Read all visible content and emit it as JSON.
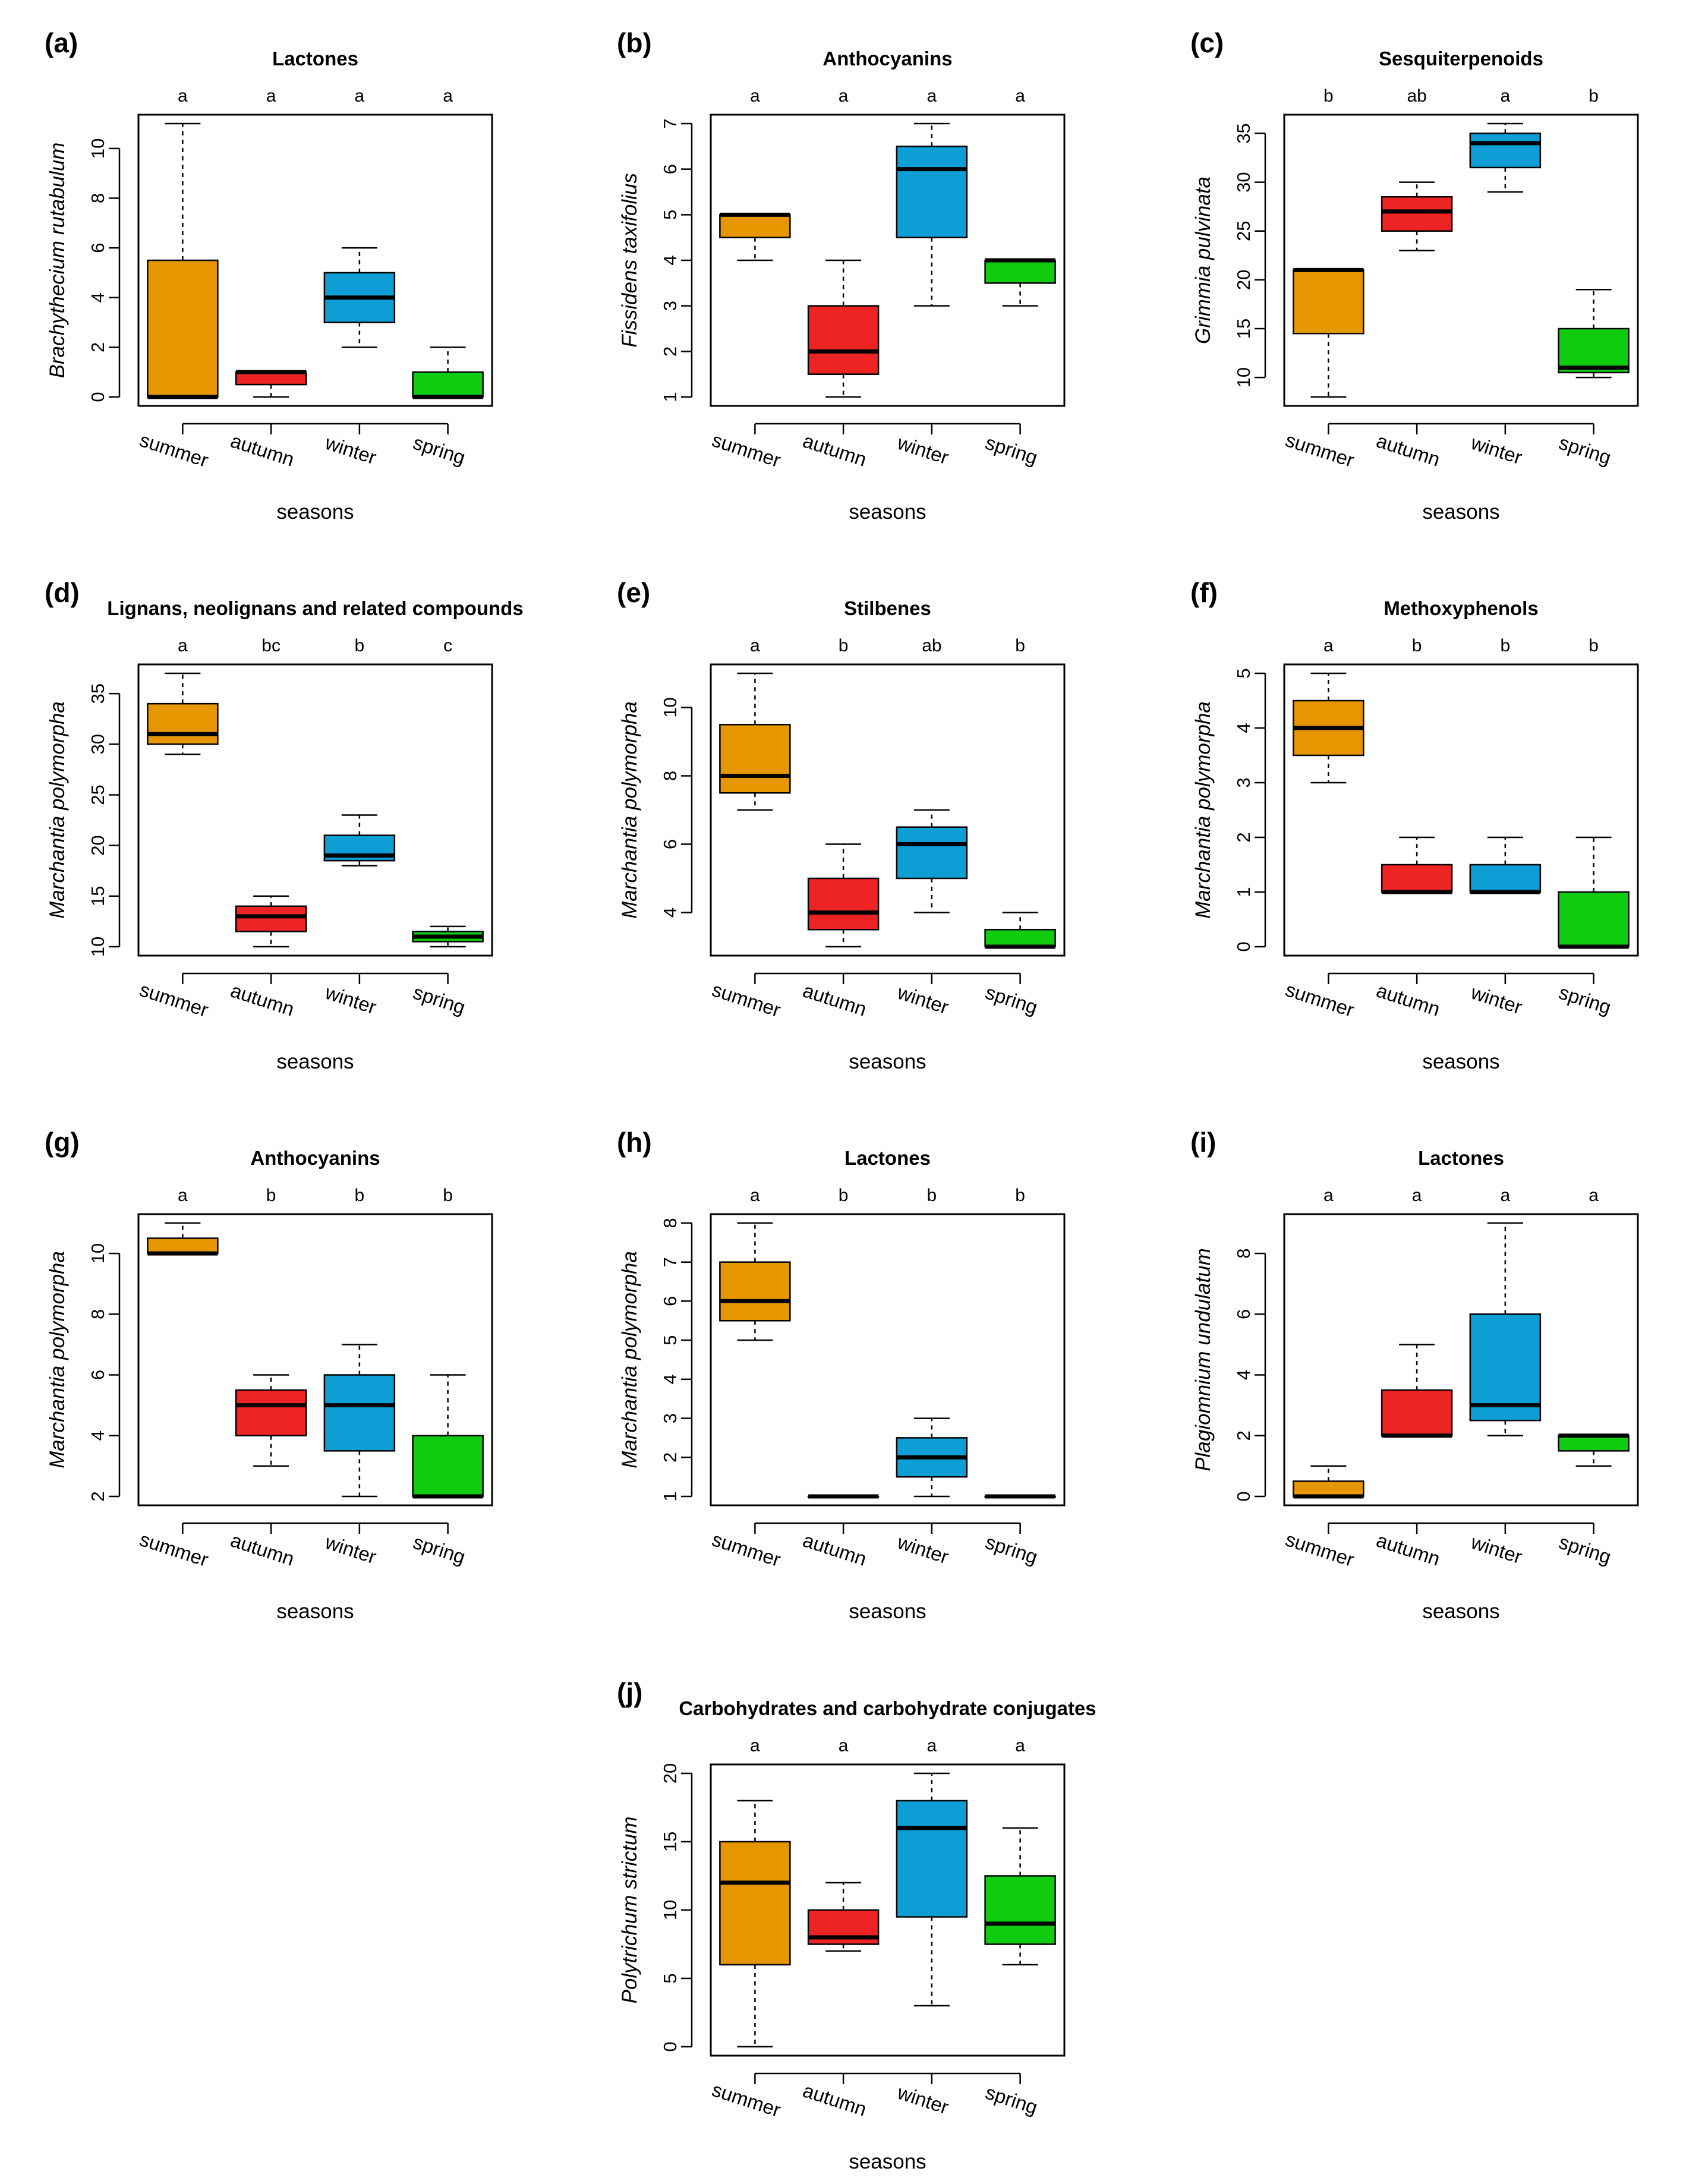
{
  "figure": {
    "colors": {
      "summer": "#E69600",
      "autumn": "#EE2424",
      "winter": "#0D9ED6",
      "spring": "#10CC10",
      "median": "#000000"
    },
    "seasons": [
      "summer",
      "autumn",
      "winter",
      "spring"
    ]
  },
  "chart_data": [
    {
      "id": "a",
      "label": "(a)",
      "type": "box",
      "title": "Lactones",
      "ylabel": "Brachythecium rutabulum",
      "xlabel": "seasons",
      "ylim": [
        0,
        11
      ],
      "yticks": [
        0,
        2,
        4,
        6,
        8,
        10
      ],
      "categories": [
        "summer",
        "autumn",
        "winter",
        "spring"
      ],
      "letters": [
        "a",
        "a",
        "a",
        "a"
      ],
      "boxes": [
        {
          "min": 0,
          "q1": 0,
          "median": 0,
          "q3": 5.5,
          "max": 11
        },
        {
          "min": 0,
          "q1": 0.5,
          "median": 1,
          "q3": 1,
          "max": 1
        },
        {
          "min": 2,
          "q1": 3,
          "median": 4,
          "q3": 5,
          "max": 6
        },
        {
          "min": 0,
          "q1": 0,
          "median": 0,
          "q3": 1,
          "max": 2
        }
      ]
    },
    {
      "id": "b",
      "label": "(b)",
      "type": "box",
      "title": "Anthocyanins",
      "ylabel": "Fissidens taxifolius",
      "xlabel": "seasons",
      "ylim": [
        1,
        7
      ],
      "yticks": [
        1,
        2,
        3,
        4,
        5,
        6,
        7
      ],
      "categories": [
        "summer",
        "autumn",
        "winter",
        "spring"
      ],
      "letters": [
        "a",
        "a",
        "a",
        "a"
      ],
      "boxes": [
        {
          "min": 4,
          "q1": 4.5,
          "median": 5,
          "q3": 5,
          "max": 5
        },
        {
          "min": 1,
          "q1": 1.5,
          "median": 2,
          "q3": 3,
          "max": 4
        },
        {
          "min": 3,
          "q1": 4.5,
          "median": 6,
          "q3": 6.5,
          "max": 7
        },
        {
          "min": 3,
          "q1": 3.5,
          "median": 4,
          "q3": 4,
          "max": 4
        }
      ]
    },
    {
      "id": "c",
      "label": "(c)",
      "type": "box",
      "title": "Sesquiterpenoids",
      "ylabel": "Grimmia pulvinata",
      "xlabel": "seasons",
      "ylim": [
        8,
        36
      ],
      "yticks": [
        10,
        15,
        20,
        25,
        30,
        35
      ],
      "categories": [
        "summer",
        "autumn",
        "winter",
        "spring"
      ],
      "letters": [
        "b",
        "ab",
        "a",
        "b"
      ],
      "boxes": [
        {
          "min": 8,
          "q1": 14.5,
          "median": 21,
          "q3": 21,
          "max": 21
        },
        {
          "min": 23,
          "q1": 25,
          "median": 27,
          "q3": 28.5,
          "max": 30
        },
        {
          "min": 29,
          "q1": 31.5,
          "median": 34,
          "q3": 35,
          "max": 36
        },
        {
          "min": 10,
          "q1": 10.5,
          "median": 11,
          "q3": 15,
          "max": 19
        }
      ]
    },
    {
      "id": "d",
      "label": "(d)",
      "type": "box",
      "title": "Lignans, neolignans and related compounds",
      "ylabel": "Marchantia polymorpha",
      "xlabel": "seasons",
      "ylim": [
        10,
        37
      ],
      "yticks": [
        10,
        15,
        20,
        25,
        30,
        35
      ],
      "categories": [
        "summer",
        "autumn",
        "winter",
        "spring"
      ],
      "letters": [
        "a",
        "bc",
        "b",
        "c"
      ],
      "boxes": [
        {
          "min": 29,
          "q1": 30,
          "median": 31,
          "q3": 34,
          "max": 37
        },
        {
          "min": 10,
          "q1": 11.5,
          "median": 13,
          "q3": 14,
          "max": 15
        },
        {
          "min": 18,
          "q1": 18.5,
          "median": 19,
          "q3": 21,
          "max": 23
        },
        {
          "min": 10,
          "q1": 10.5,
          "median": 11,
          "q3": 11.5,
          "max": 12
        }
      ]
    },
    {
      "id": "e",
      "label": "(e)",
      "type": "box",
      "title": "Stilbenes",
      "ylabel": "Marchantia polymorpha",
      "xlabel": "seasons",
      "ylim": [
        3,
        11
      ],
      "yticks": [
        4,
        6,
        8,
        10
      ],
      "categories": [
        "summer",
        "autumn",
        "winter",
        "spring"
      ],
      "letters": [
        "a",
        "b",
        "ab",
        "b"
      ],
      "boxes": [
        {
          "min": 7,
          "q1": 7.5,
          "median": 8,
          "q3": 9.5,
          "max": 11
        },
        {
          "min": 3,
          "q1": 3.5,
          "median": 4,
          "q3": 5,
          "max": 6
        },
        {
          "min": 4,
          "q1": 5,
          "median": 6,
          "q3": 6.5,
          "max": 7
        },
        {
          "min": 3,
          "q1": 3,
          "median": 3,
          "q3": 3.5,
          "max": 4
        }
      ]
    },
    {
      "id": "f",
      "label": "(f)",
      "type": "box",
      "title": "Methoxyphenols",
      "ylabel": "Marchantia polymorpha",
      "xlabel": "seasons",
      "ylim": [
        0,
        5
      ],
      "yticks": [
        0,
        1,
        2,
        3,
        4,
        5
      ],
      "categories": [
        "summer",
        "autumn",
        "winter",
        "spring"
      ],
      "letters": [
        "a",
        "b",
        "b",
        "b"
      ],
      "boxes": [
        {
          "min": 3,
          "q1": 3.5,
          "median": 4,
          "q3": 4.5,
          "max": 5
        },
        {
          "min": 1,
          "q1": 1,
          "median": 1,
          "q3": 1.5,
          "max": 2
        },
        {
          "min": 1,
          "q1": 1,
          "median": 1,
          "q3": 1.5,
          "max": 2
        },
        {
          "min": 0,
          "q1": 0,
          "median": 0,
          "q3": 1,
          "max": 2
        }
      ]
    },
    {
      "id": "g",
      "label": "(g)",
      "type": "box",
      "title": "Anthocyanins",
      "ylabel": "Marchantia polymorpha",
      "xlabel": "seasons",
      "ylim": [
        2,
        11
      ],
      "yticks": [
        2,
        4,
        6,
        8,
        10
      ],
      "categories": [
        "summer",
        "autumn",
        "winter",
        "spring"
      ],
      "letters": [
        "a",
        "b",
        "b",
        "b"
      ],
      "boxes": [
        {
          "min": 10,
          "q1": 10,
          "median": 10,
          "q3": 10.5,
          "max": 11
        },
        {
          "min": 3,
          "q1": 4,
          "median": 5,
          "q3": 5.5,
          "max": 6
        },
        {
          "min": 2,
          "q1": 3.5,
          "median": 5,
          "q3": 6,
          "max": 7
        },
        {
          "min": 2,
          "q1": 2,
          "median": 2,
          "q3": 4,
          "max": 6
        }
      ]
    },
    {
      "id": "h",
      "label": "(h)",
      "type": "box",
      "title": "Lactones",
      "ylabel": "Marchantia polymorpha",
      "xlabel": "seasons",
      "ylim": [
        1,
        8
      ],
      "yticks": [
        1,
        2,
        3,
        4,
        5,
        6,
        7,
        8
      ],
      "categories": [
        "summer",
        "autumn",
        "winter",
        "spring"
      ],
      "letters": [
        "a",
        "b",
        "b",
        "b"
      ],
      "boxes": [
        {
          "min": 5,
          "q1": 5.5,
          "median": 6,
          "q3": 7,
          "max": 8
        },
        {
          "min": 1,
          "q1": 1,
          "median": 1,
          "q3": 1,
          "max": 1
        },
        {
          "min": 1,
          "q1": 1.5,
          "median": 2,
          "q3": 2.5,
          "max": 3
        },
        {
          "min": 1,
          "q1": 1,
          "median": 1,
          "q3": 1,
          "max": 1
        }
      ]
    },
    {
      "id": "i",
      "label": "(i)",
      "type": "box",
      "title": "Lactones",
      "ylabel": "Plagiomnium undulatum",
      "xlabel": "seasons",
      "ylim": [
        0,
        9
      ],
      "yticks": [
        0,
        2,
        4,
        6,
        8
      ],
      "categories": [
        "summer",
        "autumn",
        "winter",
        "spring"
      ],
      "letters": [
        "a",
        "a",
        "a",
        "a"
      ],
      "boxes": [
        {
          "min": 0,
          "q1": 0,
          "median": 0,
          "q3": 0.5,
          "max": 1
        },
        {
          "min": 2,
          "q1": 2,
          "median": 2,
          "q3": 3.5,
          "max": 5
        },
        {
          "min": 2,
          "q1": 2.5,
          "median": 3,
          "q3": 6,
          "max": 9
        },
        {
          "min": 1,
          "q1": 1.5,
          "median": 2,
          "q3": 2,
          "max": 2
        }
      ]
    },
    {
      "id": "j",
      "label": "(j)",
      "type": "box",
      "title": "Carbohydrates and carbohydrate conjugates",
      "ylabel": "Polytrichum strictum",
      "xlabel": "seasons",
      "ylim": [
        0,
        20
      ],
      "yticks": [
        0,
        5,
        10,
        15,
        20
      ],
      "categories": [
        "summer",
        "autumn",
        "winter",
        "spring"
      ],
      "letters": [
        "a",
        "a",
        "a",
        "a"
      ],
      "boxes": [
        {
          "min": 0,
          "q1": 6,
          "median": 12,
          "q3": 15,
          "max": 18
        },
        {
          "min": 7,
          "q1": 7.5,
          "median": 8,
          "q3": 10,
          "max": 12
        },
        {
          "min": 3,
          "q1": 9.5,
          "median": 16,
          "q3": 18,
          "max": 20
        },
        {
          "min": 6,
          "q1": 7.5,
          "median": 9,
          "q3": 12.5,
          "max": 16
        }
      ]
    }
  ]
}
